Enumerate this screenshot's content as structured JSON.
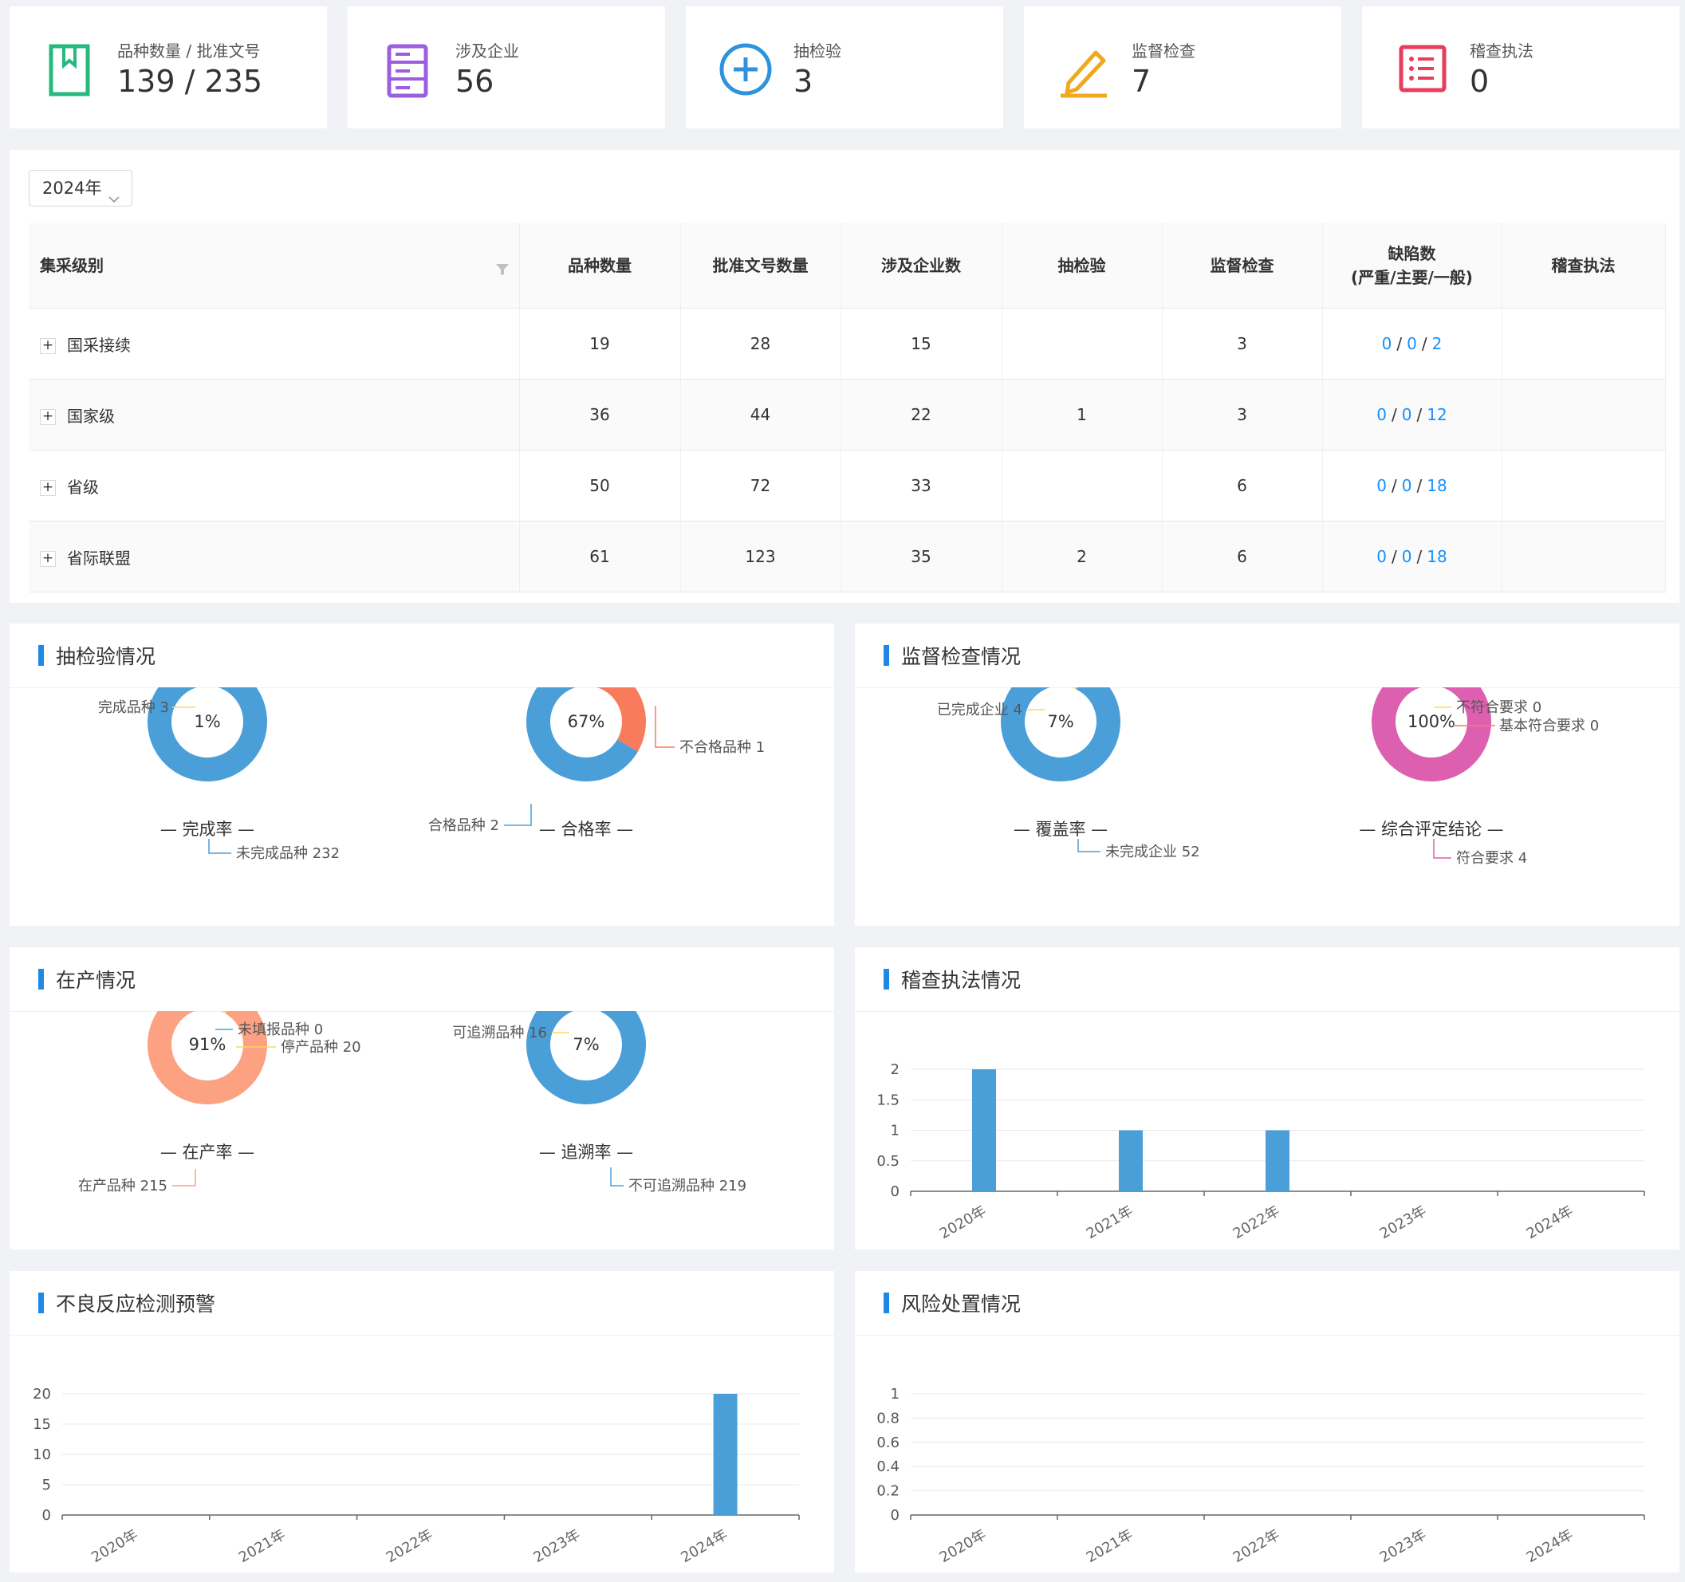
{
  "stats": [
    {
      "label": "品种数量 / 批准文号",
      "value": "139 / 235",
      "icon": "bookmark-icon",
      "color": "#26b97e"
    },
    {
      "label": "涉及企业",
      "value": "56",
      "icon": "server-icon",
      "color": "#9c5de0"
    },
    {
      "label": "抽检验",
      "value": "3",
      "icon": "plus-circle-icon",
      "color": "#2f92dd"
    },
    {
      "label": "监督检查",
      "value": "7",
      "icon": "edit-icon",
      "color": "#f0a81f"
    },
    {
      "label": "稽查执法",
      "value": "0",
      "icon": "list-icon",
      "color": "#e83e5b"
    }
  ],
  "filter": {
    "year": "2024年"
  },
  "table": {
    "headers": {
      "level": "集采级别",
      "varieties": "品种数量",
      "approvals": "批准文号数量",
      "companies": "涉及企业数",
      "sampling": "抽检验",
      "inspection": "监督检查",
      "defects_line1": "缺陷数",
      "defects_line2": "(严重/主要/一般)",
      "enforcement": "稽查执法"
    },
    "expand_symbol": "+",
    "rows": [
      {
        "level": "国采接续",
        "varieties": "19",
        "approvals": "28",
        "companies": "15",
        "sampling": "",
        "inspection": "3",
        "d1": "0",
        "d2": "0",
        "d3": "2",
        "enforcement": ""
      },
      {
        "level": "国家级",
        "varieties": "36",
        "approvals": "44",
        "companies": "22",
        "sampling": "1",
        "inspection": "3",
        "d1": "0",
        "d2": "0",
        "d3": "12",
        "enforcement": ""
      },
      {
        "level": "省级",
        "varieties": "50",
        "approvals": "72",
        "companies": "33",
        "sampling": "",
        "inspection": "6",
        "d1": "0",
        "d2": "0",
        "d3": "18",
        "enforcement": ""
      },
      {
        "level": "省际联盟",
        "varieties": "61",
        "approvals": "123",
        "companies": "35",
        "sampling": "2",
        "inspection": "6",
        "d1": "0",
        "d2": "0",
        "d3": "18",
        "enforcement": ""
      }
    ]
  },
  "panels": {
    "sampling": {
      "title": "抽检验情况"
    },
    "inspection": {
      "title": "监督检查情况"
    },
    "production": {
      "title": "在产情况"
    },
    "enforcement": {
      "title": "稽查执法情况"
    },
    "adverse": {
      "title": "不良反应检测预警"
    },
    "risk": {
      "title": "风险处置情况"
    }
  },
  "chart_data": [
    {
      "type": "pie",
      "center_label": "1%",
      "caption": "— 完成率 —",
      "slices": [
        {
          "label": "完成品种 3",
          "value": 3,
          "color": "#fada5e"
        },
        {
          "label": "未完成品种 232",
          "value": 232,
          "color": "#4a9fd9"
        }
      ]
    },
    {
      "type": "pie",
      "center_label": "67%",
      "caption": "— 合格率 —",
      "slices": [
        {
          "label": "不合格品种 1",
          "value": 1,
          "color": "#f87c5c"
        },
        {
          "label": "合格品种 2",
          "value": 2,
          "color": "#4a9fd9"
        }
      ]
    },
    {
      "type": "pie",
      "center_label": "7%",
      "caption": "— 覆盖率 —",
      "slices": [
        {
          "label": "已完成企业 4",
          "value": 4,
          "color": "#fada5e"
        },
        {
          "label": "未完成企业 52",
          "value": 52,
          "color": "#4a9fd9"
        }
      ]
    },
    {
      "type": "pie",
      "center_label": "100%",
      "caption": "— 综合评定结论 —",
      "slices": [
        {
          "label": "不符合要求 0",
          "value": 0,
          "color": "#fada5e"
        },
        {
          "label": "基本符合要求 0",
          "value": 0,
          "color": "#f87c5c"
        },
        {
          "label": "符合要求 4",
          "value": 4,
          "color": "#dc5fb0"
        }
      ]
    },
    {
      "type": "pie",
      "center_label": "91%",
      "caption": "— 在产率 —",
      "slices": [
        {
          "label": "未填报品种 0",
          "value": 0,
          "color": "#4a9fd9"
        },
        {
          "label": "停产品种 20",
          "value": 20,
          "color": "#fada5e"
        },
        {
          "label": "在产品种 215",
          "value": 215,
          "color": "#fca182"
        }
      ]
    },
    {
      "type": "pie",
      "center_label": "7%",
      "caption": "— 追溯率 —",
      "slices": [
        {
          "label": "可追溯品种 16",
          "value": 16,
          "color": "#fada5e"
        },
        {
          "label": "不可追溯品种 219",
          "value": 219,
          "color": "#4a9fd9"
        }
      ]
    },
    {
      "type": "bar",
      "categories": [
        "2020年",
        "2021年",
        "2022年",
        "2023年",
        "2024年"
      ],
      "values": [
        2,
        1,
        1,
        0,
        0
      ],
      "ylim": [
        0,
        2
      ],
      "yticks": [
        "0",
        "0.5",
        "1",
        "1.5",
        "2"
      ],
      "color": "#4a9fd9"
    },
    {
      "type": "bar",
      "categories": [
        "2020年",
        "2021年",
        "2022年",
        "2023年",
        "2024年"
      ],
      "values": [
        0,
        0,
        0,
        0,
        20
      ],
      "ylim": [
        0,
        20
      ],
      "yticks": [
        "0",
        "5",
        "10",
        "15",
        "20"
      ],
      "color": "#4a9fd9"
    },
    {
      "type": "bar",
      "categories": [
        "2020年",
        "2021年",
        "2022年",
        "2023年",
        "2024年"
      ],
      "values": [
        0,
        0,
        0,
        0,
        0
      ],
      "ylim": [
        0,
        1
      ],
      "yticks": [
        "0",
        "0.2",
        "0.4",
        "0.6",
        "0.8",
        "1"
      ],
      "color": "#4a9fd9"
    }
  ]
}
